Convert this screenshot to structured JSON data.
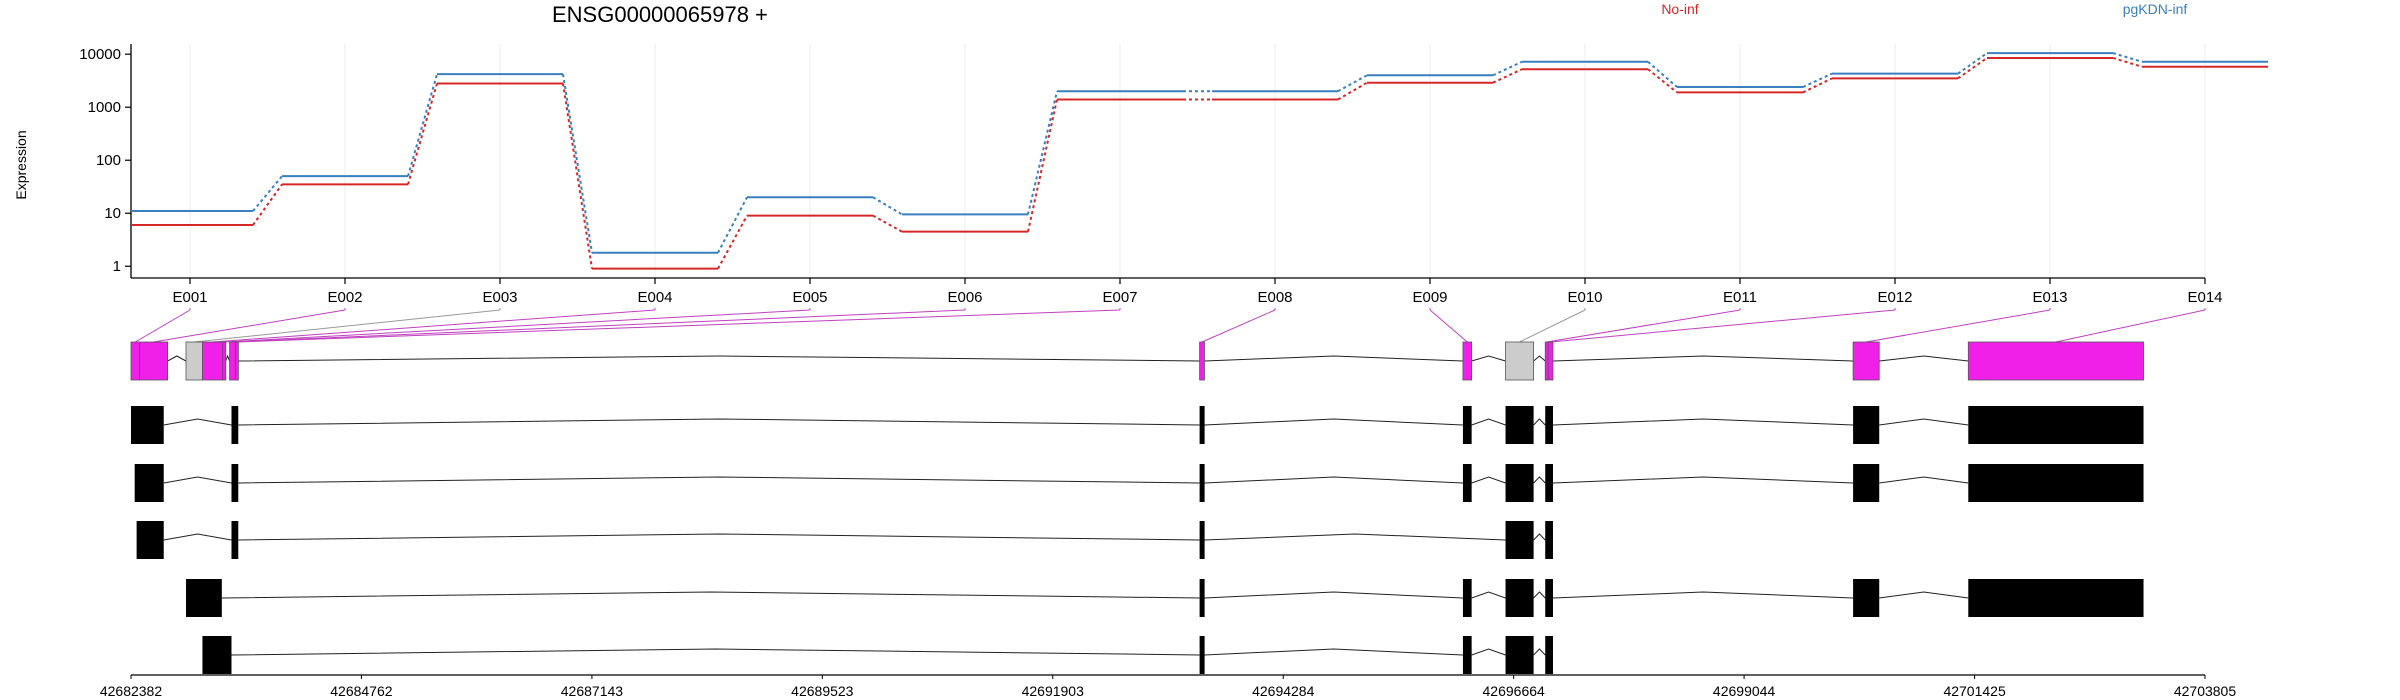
{
  "title": "ENSG00000065978 +",
  "chart_data": {
    "type": "line",
    "title": "ENSG00000065978 +",
    "xlabel": "",
    "ylabel": "Expression",
    "y_scale": "log10",
    "ylim": [
      0.6,
      12000
    ],
    "y_ticks": [
      "1",
      "10",
      "100",
      "1000",
      "10000"
    ],
    "y_tick_values": [
      1,
      10,
      100,
      1000,
      10000
    ],
    "grid": true,
    "legend_position": "top",
    "categories": [
      "E001",
      "E002",
      "E003",
      "E004",
      "E005",
      "E006",
      "E007",
      "E008",
      "E009",
      "E010",
      "E011",
      "E012",
      "E013",
      "E014"
    ],
    "series": [
      {
        "name": "No-inf",
        "color": "#d62728",
        "values": [
          6,
          35,
          2800,
          0.9,
          9,
          4.5,
          1400,
          1400,
          2900,
          5200,
          1900,
          3500,
          8500,
          5800
        ]
      },
      {
        "name": "pgKDN-inf",
        "color": "#3a7fbf",
        "values": [
          11,
          50,
          4200,
          1.8,
          20,
          9.5,
          2000,
          2000,
          4000,
          7200,
          2400,
          4300,
          10500,
          7200
        ]
      }
    ],
    "gene_track": {
      "exons": [
        {
          "id": "E001",
          "start": 42682382,
          "end": 42682470,
          "kind": "exon"
        },
        {
          "id": "E002",
          "start": 42682470,
          "end": 42682760,
          "kind": "exon"
        },
        {
          "id": "E003",
          "start": 42682950,
          "end": 42683120,
          "kind": "intron"
        },
        {
          "id": "E004",
          "start": 42683120,
          "end": 42683330,
          "kind": "exon"
        },
        {
          "id": "E005",
          "start": 42683330,
          "end": 42683360,
          "kind": "exon"
        },
        {
          "id": "E006",
          "start": 42683400,
          "end": 42683460,
          "kind": "exon"
        },
        {
          "id": "E007",
          "start": 42683460,
          "end": 42683490,
          "kind": "exon"
        },
        {
          "id": "E008",
          "start": 42693420,
          "end": 42693470,
          "kind": "exon"
        },
        {
          "id": "E009",
          "start": 42696140,
          "end": 42696230,
          "kind": "exon"
        },
        {
          "id": "E010",
          "start": 42696580,
          "end": 42696870,
          "kind": "intron"
        },
        {
          "id": "E011",
          "start": 42696990,
          "end": 42697020,
          "kind": "exon"
        },
        {
          "id": "E012",
          "start": 42697020,
          "end": 42697070,
          "kind": "exon"
        },
        {
          "id": "E013",
          "start": 42700170,
          "end": 42700440,
          "kind": "exon"
        },
        {
          "id": "E014",
          "start": 42701360,
          "end": 42703170,
          "kind": "exon"
        }
      ],
      "transcripts": [
        [
          [
            42682382,
            42682720
          ],
          [
            42683420,
            42683490
          ],
          [
            42693420,
            42693470
          ],
          [
            42696140,
            42696230
          ],
          [
            42696580,
            42696870
          ],
          [
            42696990,
            42697070
          ],
          [
            42700170,
            42700440
          ],
          [
            42701360,
            42703170
          ]
        ],
        [
          [
            42682420,
            42682720
          ],
          [
            42683420,
            42683490
          ],
          [
            42693420,
            42693470
          ],
          [
            42696140,
            42696230
          ],
          [
            42696580,
            42696870
          ],
          [
            42696990,
            42697070
          ],
          [
            42700170,
            42700440
          ],
          [
            42701360,
            42703170
          ]
        ],
        [
          [
            42682440,
            42682720
          ],
          [
            42683420,
            42683490
          ],
          [
            42693420,
            42693470
          ],
          [
            42696580,
            42696870
          ],
          [
            42696990,
            42697070
          ]
        ],
        [
          [
            42682950,
            42683320
          ],
          [
            42693420,
            42693470
          ],
          [
            42696140,
            42696230
          ],
          [
            42696580,
            42696870
          ],
          [
            42696990,
            42697070
          ],
          [
            42700170,
            42700440
          ],
          [
            42701360,
            42703170
          ]
        ],
        [
          [
            42683120,
            42683420
          ],
          [
            42693420,
            42693470
          ],
          [
            42696140,
            42696230
          ],
          [
            42696580,
            42696870
          ],
          [
            42696990,
            42697070
          ]
        ]
      ]
    },
    "genomic_axis": {
      "range": [
        42682382,
        42703805
      ],
      "ticks": [
        "42682382",
        "42684762",
        "42687143",
        "42689523",
        "42691903",
        "42694284",
        "42696664",
        "42699044",
        "42701425",
        "42703805"
      ],
      "tick_values": [
        42682382,
        42684762,
        42687143,
        42689523,
        42691903,
        42694284,
        42696664,
        42699044,
        42701425,
        42703805
      ]
    }
  }
}
